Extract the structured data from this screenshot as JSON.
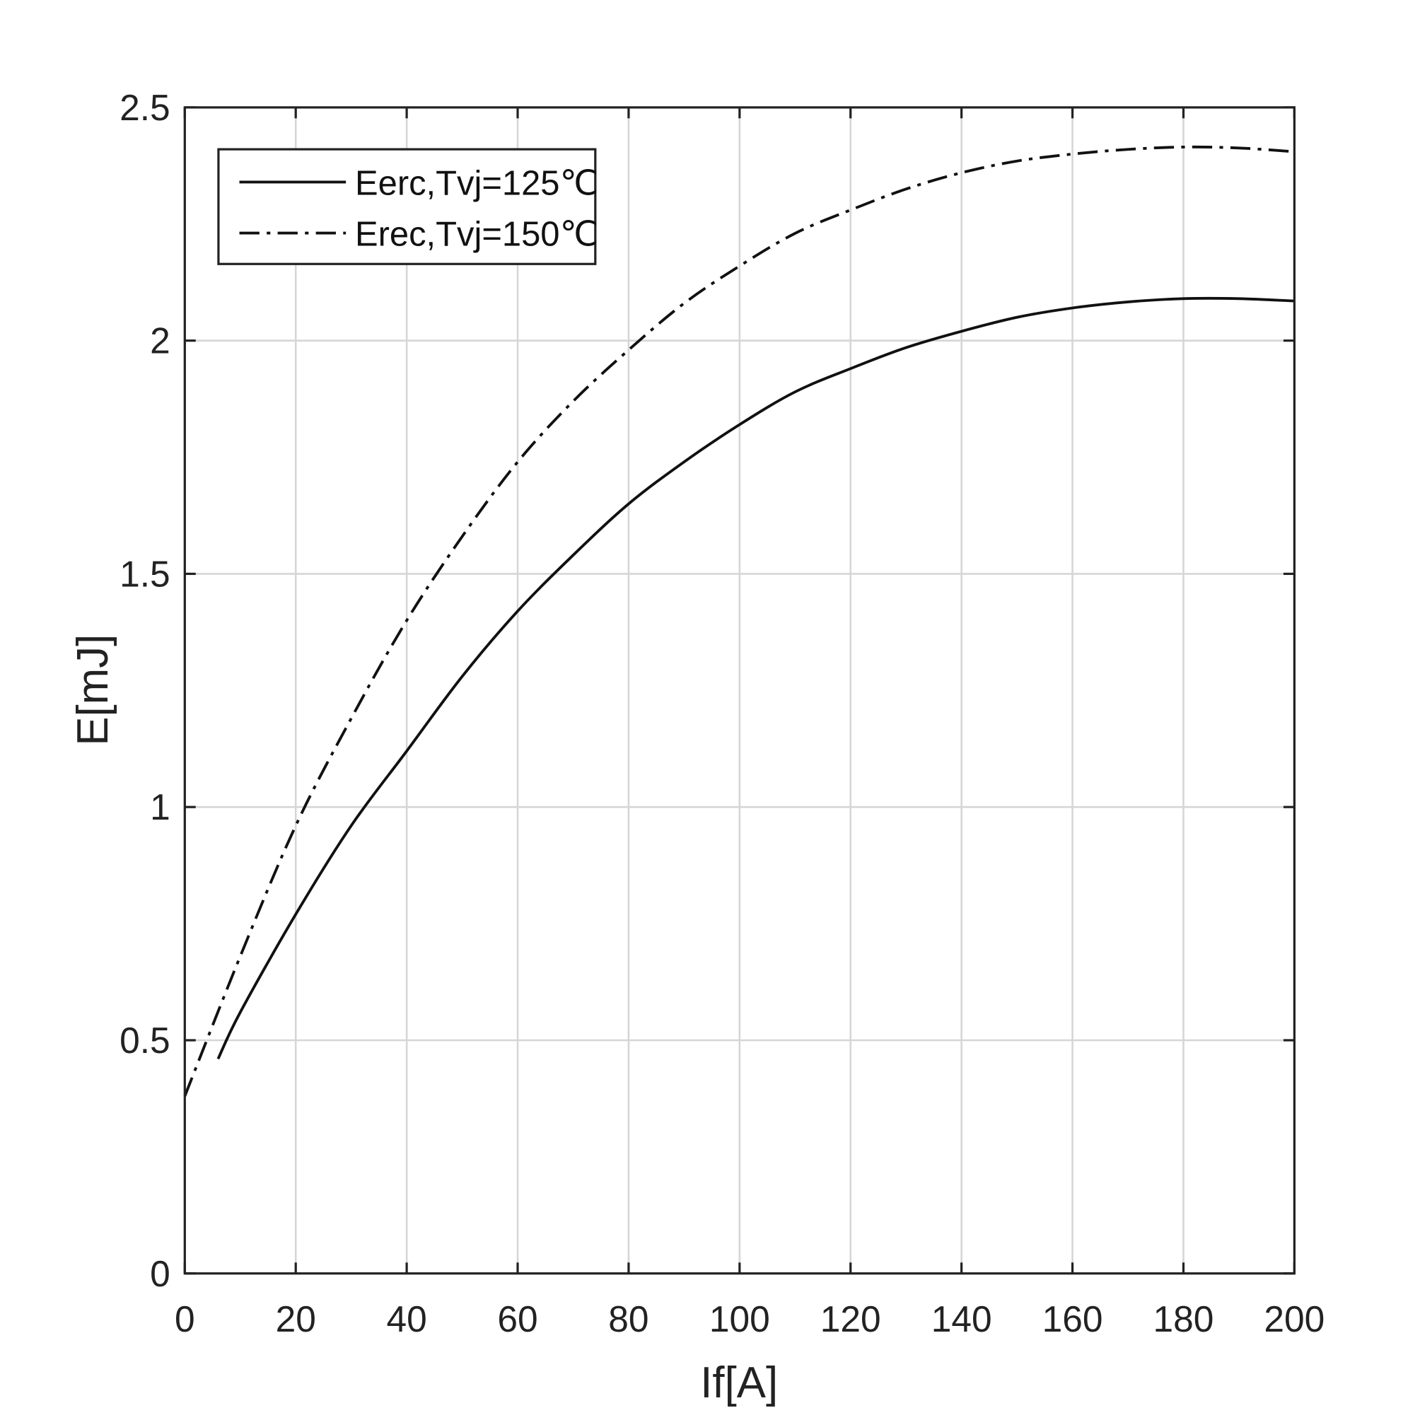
{
  "chart_data": {
    "type": "line",
    "title": "",
    "xlabel": "If[A]",
    "ylabel": "E[mJ]",
    "xlim": [
      0,
      200
    ],
    "ylim": [
      0,
      2.5
    ],
    "xticks": [
      "0",
      "20",
      "40",
      "60",
      "80",
      "100",
      "120",
      "140",
      "160",
      "180",
      "200"
    ],
    "yticks": [
      "0",
      "0.5",
      "1",
      "1.5",
      "2",
      "2.5"
    ],
    "grid": true,
    "legend_position": "top-left",
    "series": [
      {
        "name": "Eerc,Tvj=125℃",
        "style": "solid",
        "x": [
          6,
          10,
          20,
          30,
          40,
          50,
          60,
          70,
          80,
          90,
          100,
          110,
          120,
          130,
          140,
          150,
          160,
          170,
          180,
          190,
          200
        ],
        "y": [
          0.46,
          0.56,
          0.77,
          0.96,
          1.12,
          1.28,
          1.42,
          1.54,
          1.65,
          1.74,
          1.82,
          1.89,
          1.94,
          1.985,
          2.02,
          2.05,
          2.07,
          2.083,
          2.09,
          2.09,
          2.085
        ]
      },
      {
        "name": "Erec,Tvj=150℃",
        "style": "dashdot",
        "x": [
          0,
          10,
          20,
          30,
          40,
          50,
          60,
          70,
          80,
          90,
          100,
          110,
          120,
          130,
          140,
          150,
          160,
          170,
          180,
          190,
          200
        ],
        "y": [
          0.38,
          0.68,
          0.96,
          1.19,
          1.4,
          1.58,
          1.74,
          1.87,
          1.98,
          2.08,
          2.16,
          2.23,
          2.28,
          2.325,
          2.36,
          2.385,
          2.4,
          2.41,
          2.415,
          2.413,
          2.405
        ]
      }
    ]
  }
}
